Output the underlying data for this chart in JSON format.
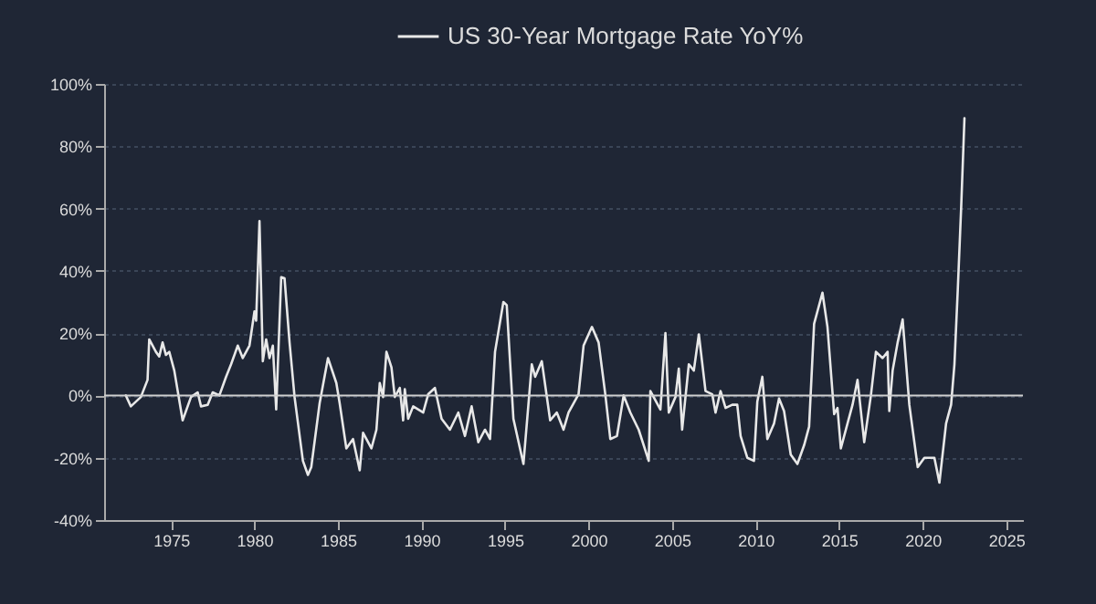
{
  "chart_data": {
    "type": "line",
    "x": [
      1972.3,
      1972.6,
      1973.2,
      1973.6,
      1973.7,
      1974.1,
      1974.3,
      1974.5,
      1974.7,
      1974.9,
      1975.2,
      1975.7,
      1976.2,
      1976.6,
      1976.8,
      1977.2,
      1977.5,
      1977.9,
      1978.3,
      1978.6,
      1979.0,
      1979.3,
      1979.7,
      1980.0,
      1980.1,
      1980.3,
      1980.5,
      1980.7,
      1980.9,
      1981.1,
      1981.3,
      1981.6,
      1981.8,
      1982.1,
      1982.4,
      1982.9,
      1983.2,
      1983.4,
      1983.9,
      1984.4,
      1984.9,
      1985.1,
      1985.5,
      1985.9,
      1986.3,
      1986.5,
      1987.0,
      1987.3,
      1987.5,
      1987.7,
      1987.9,
      1988.2,
      1988.4,
      1988.7,
      1988.9,
      1989.0,
      1989.2,
      1989.5,
      1990.1,
      1990.4,
      1990.8,
      1991.2,
      1991.7,
      1992.2,
      1992.6,
      1993.0,
      1993.4,
      1993.8,
      1994.1,
      1994.4,
      1994.9,
      1995.1,
      1995.5,
      1996.1,
      1996.6,
      1996.8,
      1997.2,
      1997.7,
      1998.1,
      1998.5,
      1998.8,
      1999.4,
      1999.7,
      2000.2,
      2000.6,
      2001.0,
      2001.3,
      2001.7,
      2002.1,
      2002.5,
      2003.0,
      2003.6,
      2003.7,
      2004.3,
      2004.6,
      2004.8,
      2005.2,
      2005.4,
      2005.6,
      2006.0,
      2006.3,
      2006.6,
      2007.0,
      2007.4,
      2007.6,
      2007.9,
      2008.2,
      2008.6,
      2008.9,
      2009.1,
      2009.5,
      2009.9,
      2010.1,
      2010.4,
      2010.7,
      2011.1,
      2011.4,
      2011.7,
      2012.1,
      2012.5,
      2012.9,
      2013.2,
      2013.5,
      2014.0,
      2014.3,
      2014.7,
      2014.9,
      2015.1,
      2015.5,
      2015.8,
      2016.1,
      2016.5,
      2016.9,
      2017.2,
      2017.6,
      2017.9,
      2018.0,
      2018.2,
      2018.5,
      2018.8,
      2019.2,
      2019.7,
      2020.1,
      2020.5,
      2020.7,
      2021.0,
      2021.4,
      2021.7,
      2021.9,
      2022.1,
      2022.3,
      2022.5
    ],
    "series": [
      {
        "name": "US 30-Year Mortgage Rate YoY%",
        "color": "#e8e8e8",
        "values": [
          0,
          -3.5,
          -0.5,
          5,
          18,
          14,
          12.5,
          17,
          13,
          14,
          8,
          -8,
          -0.5,
          1,
          -3.5,
          -3,
          1,
          0,
          6,
          10,
          16,
          12,
          16,
          27,
          24,
          56,
          11,
          18,
          12,
          16,
          -4.5,
          38,
          37.6,
          17,
          -0.5,
          -21,
          -25.5,
          -23,
          -2.5,
          12,
          4,
          -2.5,
          -17,
          -14,
          -24,
          -12,
          -17,
          -11,
          4,
          -0.5,
          14,
          9,
          -0.5,
          2.4,
          -8,
          2,
          -7.5,
          -3.5,
          -5.5,
          0.4,
          2.4,
          -7.5,
          -11,
          -5.5,
          -13,
          -3.5,
          -15,
          -11,
          -14,
          14,
          30,
          29,
          -7.5,
          -22,
          10,
          6,
          11,
          -8,
          -5.5,
          -11,
          -5.5,
          0.4,
          16,
          22,
          17,
          0.4,
          -14,
          -13,
          0,
          -5.5,
          -11,
          -21,
          1.4,
          -4.5,
          20,
          -5.5,
          -0.5,
          8.6,
          -11,
          10,
          8,
          19.6,
          1.4,
          0.4,
          -5.5,
          1.4,
          -4,
          -3,
          -3,
          -13,
          -20,
          -21,
          -2,
          6,
          -14,
          -9,
          -1,
          -5,
          -19,
          -22,
          -16,
          -10,
          23,
          33,
          22,
          -6,
          -4,
          -17,
          -9,
          -3,
          5,
          -15,
          0,
          14,
          12,
          14,
          -5,
          8,
          17,
          24.4,
          -3,
          -23,
          -20,
          -20,
          -20,
          -28,
          -9,
          -3,
          10,
          34,
          60,
          89
        ]
      }
    ],
    "xlim": [
      1971,
      2026
    ],
    "xticks": [
      1975,
      1980,
      1985,
      1990,
      1995,
      2000,
      2005,
      2010,
      2015,
      2020,
      2025
    ],
    "ylim": [
      -40,
      100
    ],
    "yticks": [
      {
        "value": -40,
        "label": "-40%"
      },
      {
        "value": -20,
        "label": "-20%"
      },
      {
        "value": 0,
        "label": "0%"
      },
      {
        "value": 20,
        "label": "20%"
      },
      {
        "value": 40,
        "label": "40%"
      },
      {
        "value": 60,
        "label": "60%"
      },
      {
        "value": 80,
        "label": "80%"
      },
      {
        "value": 100,
        "label": "100%"
      }
    ],
    "ref_lines": [
      {
        "axis": "y",
        "value": 0,
        "color": "#d0d0d0"
      }
    ],
    "grid": "y",
    "legend": "top",
    "marker": "none",
    "line_style": "solid"
  }
}
